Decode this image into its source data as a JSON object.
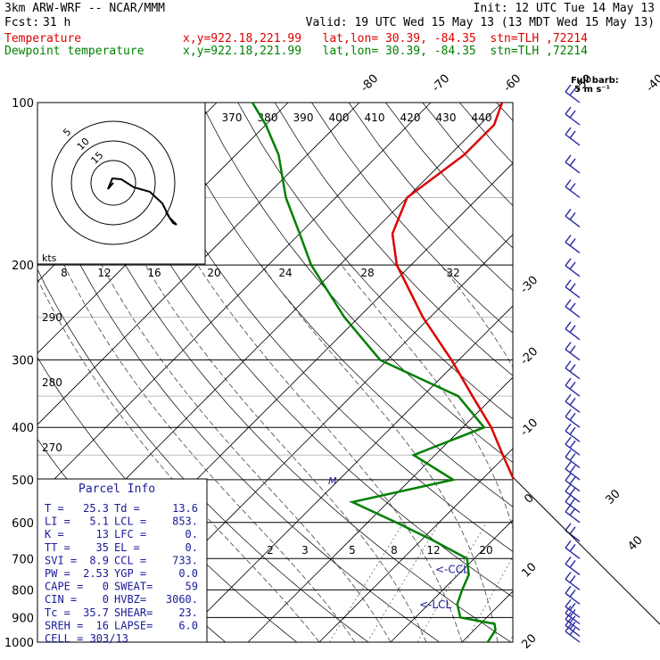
{
  "header": {
    "model": "3km ARW-WRF -- NCAR/MMM",
    "init": "Init: 12 UTC Tue 14 May 13",
    "fcst_label": "Fcst:",
    "fcst_value": "31 h",
    "valid": "Valid: 19 UTC Wed 15 May 13 (13 MDT Wed 15 May 13)",
    "temp_label": "Temperature",
    "dew_label": "Dewpoint temperature",
    "temp_loc": "x,y=922.18,221.99   lat,lon= 30.39, -84.35  stn=TLH ,72214",
    "dew_loc": "x,y=922.18,221.99   lat,lon= 30.39, -84.35  stn=TLH ,72214",
    "colors": {
      "temperature": "#dd0000",
      "dewpoint": "#008000",
      "wind": "#2a2aa0",
      "parcel_text": "#1a1a9a"
    }
  },
  "chart_data": {
    "type": "line",
    "diagram": "skew-T log-P",
    "pressure_axis": {
      "ticks": [
        100,
        200,
        300,
        400,
        500,
        600,
        700,
        800,
        900,
        1000
      ],
      "log_scale": true
    },
    "isotherm_labels": [
      -80,
      -70,
      -60,
      -50,
      -40,
      -30,
      -20,
      -10,
      0,
      10,
      20,
      30,
      40
    ],
    "theta_e_labels": [
      370,
      380,
      390,
      400,
      410,
      420,
      430,
      440
    ],
    "mixing_ratio_labels": [
      2,
      3,
      5,
      8,
      12,
      20
    ],
    "theta_labels": [
      290,
      280,
      270
    ],
    "temperature": [
      [
        1000,
        25.3
      ],
      [
        975,
        21
      ],
      [
        950,
        18.5
      ],
      [
        925,
        17.3
      ],
      [
        900,
        16.2
      ],
      [
        850,
        14.4
      ],
      [
        800,
        12.5
      ],
      [
        750,
        10
      ],
      [
        700,
        7.6
      ],
      [
        650,
        5
      ],
      [
        600,
        1.5
      ],
      [
        550,
        -1.5
      ],
      [
        500,
        -5.5
      ],
      [
        450,
        -10.5
      ],
      [
        400,
        -16
      ],
      [
        350,
        -23
      ],
      [
        300,
        -31
      ],
      [
        250,
        -41
      ],
      [
        200,
        -52
      ],
      [
        175,
        -57
      ],
      [
        150,
        -60
      ],
      [
        125,
        -58
      ],
      [
        110,
        -58
      ],
      [
        100,
        -60
      ]
    ],
    "dewpoint": [
      [
        1000,
        13.6
      ],
      [
        975,
        13.3
      ],
      [
        950,
        13
      ],
      [
        925,
        12
      ],
      [
        900,
        6.3
      ],
      [
        850,
        4
      ],
      [
        800,
        2.7
      ],
      [
        750,
        1.5
      ],
      [
        700,
        -1
      ],
      [
        650,
        -8
      ],
      [
        600,
        -16
      ],
      [
        550,
        -25
      ],
      [
        500,
        -14
      ],
      [
        450,
        -23
      ],
      [
        400,
        -17
      ],
      [
        350,
        -25
      ],
      [
        300,
        -41
      ],
      [
        250,
        -52
      ],
      [
        200,
        -64
      ],
      [
        175,
        -70
      ],
      [
        150,
        -77
      ],
      [
        125,
        -84
      ],
      [
        110,
        -90
      ],
      [
        100,
        -95
      ]
    ],
    "parcel_markers": [
      {
        "label": "<-CCL",
        "pressure": 733
      },
      {
        "label": "<-LCL",
        "pressure": 853
      }
    ],
    "m_marker": {
      "label": "M",
      "pressure": 500
    },
    "wind_barb_pressures": [
      1000,
      975,
      950,
      925,
      900,
      850,
      800,
      750,
      700,
      650,
      600,
      575,
      550,
      525,
      500,
      475,
      450,
      425,
      400,
      375,
      350,
      325,
      300,
      275,
      250,
      230,
      210,
      190,
      170,
      150,
      135,
      120,
      110,
      100
    ],
    "full_barb_legend": [
      "Full barb:",
      "5 m s⁻¹"
    ],
    "hodograph": {
      "label": "kts",
      "ring_labels": [
        "5",
        "10",
        "15"
      ],
      "x_ticks": [
        "8",
        "12",
        "16",
        "20",
        "24",
        "28",
        "32"
      ],
      "trace": [
        [
          0,
          0
        ],
        [
          1,
          -1
        ],
        [
          2,
          -2
        ],
        [
          3,
          -3
        ],
        [
          4,
          -5
        ],
        [
          3,
          -6
        ],
        [
          2,
          -6
        ],
        [
          0,
          -3
        ],
        [
          -1,
          -2
        ],
        [
          -1,
          -1
        ],
        [
          0,
          0
        ]
      ]
    }
  },
  "parcel_info": {
    "title": "Parcel Info",
    "rows": [
      [
        "T  =",
        "25.3",
        "Td =",
        "13.6"
      ],
      [
        "LI =",
        "5.1",
        "LCL =",
        "853."
      ],
      [
        "K  =",
        "13",
        "LFC =",
        "0."
      ],
      [
        "TT =",
        "35",
        "EL  =",
        "0."
      ],
      [
        "SVI =",
        "8.9",
        "CCL =",
        "733."
      ],
      [
        "PW =",
        "2.53",
        "YGP =",
        "0.0"
      ],
      [
        "CAPE =",
        "0",
        "SWEAT=",
        "59"
      ],
      [
        "CIN  =",
        "0",
        "HVBZ=",
        "3060."
      ],
      [
        "Tc =",
        "35.7",
        "SHEAR=",
        "23."
      ],
      [
        "SREH =",
        "16",
        "LAPSE=",
        "6.0"
      ]
    ],
    "cell": "CELL = 303/13"
  }
}
